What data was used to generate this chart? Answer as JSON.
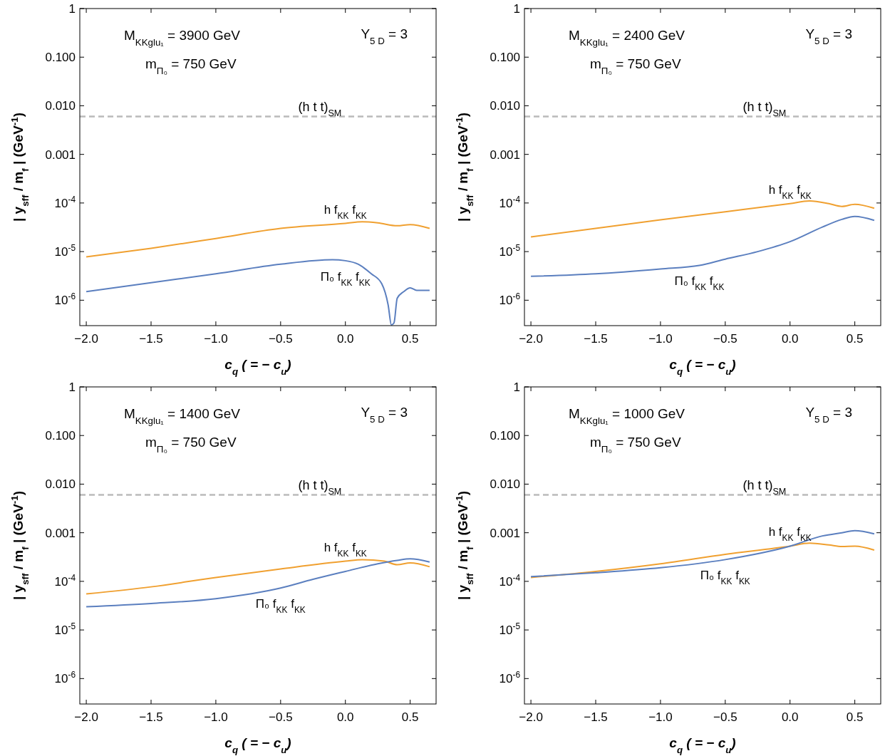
{
  "chart_data": [
    {
      "type": "line",
      "xlabel": "c$_{q}$ ( = − c$_{u}$)",
      "ylabel": "| y$_{sff}$ / m$_{f}$ | (GeV$^{-1}$)",
      "log": "y",
      "legend": false,
      "grid": false,
      "marker": "none",
      "line_style": "solid",
      "xlim": [
        -2.05,
        0.7
      ],
      "xticks": [
        {
          "value": -2,
          "label": "−2.0"
        },
        {
          "value": -1.5,
          "label": "−1.5"
        },
        {
          "value": -1,
          "label": "−1.0"
        },
        {
          "value": -0.5,
          "label": "−0.5"
        },
        {
          "value": 0,
          "label": "0.0"
        },
        {
          "value": 0.5,
          "label": "0.5"
        }
      ],
      "ylim": [
        3e-07,
        1
      ],
      "yticks": [
        {
          "value": 1,
          "label": "1"
        },
        {
          "value": 0.1,
          "label": "0.100"
        },
        {
          "value": 0.01,
          "label": "0.010"
        },
        {
          "value": 0.001,
          "label": "0.001"
        },
        {
          "value": 0.0001,
          "label": "10$^{-4}$"
        },
        {
          "value": 1e-05,
          "label": "10$^{-5}$"
        },
        {
          "value": 1e-06,
          "label": "10$^{-6}$"
        }
      ],
      "annotations": [
        "M$_{KKglu₁}$ = 3900 GeV",
        "m$_{Π₀}$ = 750 GeV",
        "Y$_{5 D}$ = 3"
      ],
      "ref_lines": [
        {
          "axis": "y",
          "value": 0.006,
          "label": "(h t t)$_{SM}$",
          "color": "#bbbbbb",
          "line_style": "dashed"
        }
      ],
      "series": [
        {
          "name": "h f$_{KK}$ f$_{KK}$",
          "color": "#f0a030",
          "x": [
            -2,
            -1.5,
            -1,
            -0.5,
            0,
            0.13,
            0.25,
            0.4,
            0.5,
            0.65
          ],
          "values": [
            7.8e-06,
            1.17e-05,
            1.86e-05,
            3e-05,
            3.8e-05,
            4.1e-05,
            3.9e-05,
            3.4e-05,
            3.6e-05,
            3e-05
          ]
        },
        {
          "name": "Π₀ f$_{KK}$ f$_{KK}$",
          "color": "#5b7fbf",
          "x": [
            -2,
            -1.5,
            -1,
            -0.5,
            -0.1,
            0,
            0.1,
            0.2,
            0.28,
            0.33,
            0.355,
            0.375,
            0.4,
            0.45,
            0.5,
            0.55,
            0.65
          ],
          "values": [
            1.5e-06,
            2.3e-06,
            3.5e-06,
            5.5e-06,
            6.8e-06,
            6.5e-06,
            5.5e-06,
            3.5e-06,
            2.2e-06,
            8e-07,
            3.1e-07,
            3.4e-07,
            1.1e-06,
            1.5e-06,
            1.8e-06,
            1.6e-06,
            1.6e-06
          ]
        }
      ]
    },
    {
      "type": "line",
      "xlabel": "c$_{q}$ ( = − c$_{u}$)",
      "ylabel": "| y$_{sff}$ / m$_{f}$ | (GeV$^{-1}$)",
      "log": "y",
      "legend": false,
      "grid": false,
      "marker": "none",
      "line_style": "solid",
      "xlim": [
        -2.05,
        0.7
      ],
      "xticks": [
        {
          "value": -2,
          "label": "−2.0"
        },
        {
          "value": -1.5,
          "label": "−1.5"
        },
        {
          "value": -1,
          "label": "−1.0"
        },
        {
          "value": -0.5,
          "label": "−0.5"
        },
        {
          "value": 0,
          "label": "0.0"
        },
        {
          "value": 0.5,
          "label": "0.5"
        }
      ],
      "ylim": [
        3e-07,
        1
      ],
      "yticks": [
        {
          "value": 1,
          "label": "1"
        },
        {
          "value": 0.1,
          "label": "0.100"
        },
        {
          "value": 0.01,
          "label": "0.010"
        },
        {
          "value": 0.001,
          "label": "0.001"
        },
        {
          "value": 0.0001,
          "label": "10$^{-4}$"
        },
        {
          "value": 1e-05,
          "label": "10$^{-5}$"
        },
        {
          "value": 1e-06,
          "label": "10$^{-6}$"
        }
      ],
      "annotations": [
        "M$_{KKglu₁}$ = 2400 GeV",
        "m$_{Π₀}$ = 750 GeV",
        "Y$_{5 D}$ = 3"
      ],
      "ref_lines": [
        {
          "axis": "y",
          "value": 0.006,
          "label": "(h t t)$_{SM}$",
          "color": "#bbbbbb",
          "line_style": "dashed"
        }
      ],
      "series": [
        {
          "name": "h f$_{KK}$ f$_{KK}$",
          "color": "#f0a030",
          "x": [
            -2,
            -1.5,
            -1,
            -0.5,
            0,
            0.15,
            0.3,
            0.4,
            0.5,
            0.65
          ],
          "values": [
            2e-05,
            3e-05,
            4.5e-05,
            6.6e-05,
            9.7e-05,
            0.00011,
            9.7e-05,
            8.5e-05,
            9.4e-05,
            7.8e-05
          ]
        },
        {
          "name": "Π₀ f$_{KK}$ f$_{KK}$",
          "color": "#5b7fbf",
          "x": [
            -2,
            -1.5,
            -1,
            -0.7,
            -0.5,
            -0.25,
            0,
            0.25,
            0.4,
            0.5,
            0.65
          ],
          "values": [
            3.1e-06,
            3.5e-06,
            4.4e-06,
            5.2e-06,
            7e-06,
            1e-05,
            1.6e-05,
            3.2e-05,
            4.6e-05,
            5.3e-05,
            4.4e-05
          ]
        }
      ]
    },
    {
      "type": "line",
      "xlabel": "c$_{q}$ ( = − c$_{u}$)",
      "ylabel": "| y$_{sff}$ / m$_{f}$ | (GeV$^{-1}$)",
      "log": "y",
      "legend": false,
      "grid": false,
      "marker": "none",
      "line_style": "solid",
      "xlim": [
        -2.05,
        0.7
      ],
      "xticks": [
        {
          "value": -2,
          "label": "−2.0"
        },
        {
          "value": -1.5,
          "label": "−1.5"
        },
        {
          "value": -1,
          "label": "−1.0"
        },
        {
          "value": -0.5,
          "label": "−0.5"
        },
        {
          "value": 0,
          "label": "0.0"
        },
        {
          "value": 0.5,
          "label": "0.5"
        }
      ],
      "ylim": [
        3e-07,
        1
      ],
      "yticks": [
        {
          "value": 1,
          "label": "1"
        },
        {
          "value": 0.1,
          "label": "0.100"
        },
        {
          "value": 0.01,
          "label": "0.010"
        },
        {
          "value": 0.001,
          "label": "0.001"
        },
        {
          "value": 0.0001,
          "label": "10$^{-4}$"
        },
        {
          "value": 1e-05,
          "label": "10$^{-5}$"
        },
        {
          "value": 1e-06,
          "label": "10$^{-6}$"
        }
      ],
      "annotations": [
        "M$_{KKglu₁}$ = 1400 GeV",
        "m$_{Π₀}$ = 750 GeV",
        "Y$_{5 D}$ = 3"
      ],
      "ref_lines": [
        {
          "axis": "y",
          "value": 0.006,
          "label": "(h t t)$_{SM}$",
          "color": "#bbbbbb",
          "line_style": "dashed"
        }
      ],
      "series": [
        {
          "name": "h f$_{KK}$ f$_{KK}$",
          "color": "#f0a030",
          "x": [
            -2,
            -1.5,
            -1,
            -0.5,
            0,
            0.13,
            0.3,
            0.4,
            0.5,
            0.65
          ],
          "values": [
            5.5e-05,
            7.7e-05,
            0.00012,
            0.00018,
            0.00026,
            0.00028,
            0.00026,
            0.00022,
            0.00024,
            0.0002
          ]
        },
        {
          "name": "Π₀ f$_{KK}$ f$_{KK}$",
          "color": "#5b7fbf",
          "x": [
            -2,
            -1.5,
            -1,
            -0.5,
            -0.25,
            0,
            0.25,
            0.4,
            0.5,
            0.65
          ],
          "values": [
            3e-05,
            3.5e-05,
            4.4e-05,
            7.3e-05,
            0.00011,
            0.00016,
            0.00023,
            0.00027,
            0.00029,
            0.00025
          ]
        }
      ]
    },
    {
      "type": "line",
      "xlabel": "c$_{q}$ ( = − c$_{u}$)",
      "ylabel": "| y$_{sff}$ / m$_{f}$ | (GeV$^{-1}$)",
      "log": "y",
      "legend": false,
      "grid": false,
      "marker": "none",
      "line_style": "solid",
      "xlim": [
        -2.05,
        0.7
      ],
      "xticks": [
        {
          "value": -2,
          "label": "−2.0"
        },
        {
          "value": -1.5,
          "label": "−1.5"
        },
        {
          "value": -1,
          "label": "−1.0"
        },
        {
          "value": -0.5,
          "label": "−0.5"
        },
        {
          "value": 0,
          "label": "0.0"
        },
        {
          "value": 0.5,
          "label": "0.5"
        }
      ],
      "ylim": [
        3e-07,
        1
      ],
      "yticks": [
        {
          "value": 1,
          "label": "1"
        },
        {
          "value": 0.1,
          "label": "0.100"
        },
        {
          "value": 0.01,
          "label": "0.010"
        },
        {
          "value": 0.001,
          "label": "0.001"
        },
        {
          "value": 0.0001,
          "label": "10$^{-4}$"
        },
        {
          "value": 1e-05,
          "label": "10$^{-5}$"
        },
        {
          "value": 1e-06,
          "label": "10$^{-6}$"
        }
      ],
      "annotations": [
        "M$_{KKglu₁}$ = 1000 GeV",
        "m$_{Π₀}$ = 750 GeV",
        "Y$_{5 D}$ = 3"
      ],
      "ref_lines": [
        {
          "axis": "y",
          "value": 0.006,
          "label": "(h t t)$_{SM}$",
          "color": "#bbbbbb",
          "line_style": "dashed"
        }
      ],
      "series": [
        {
          "name": "h f$_{KK}$ f$_{KK}$",
          "color": "#f0a030",
          "x": [
            -2,
            -1.5,
            -1,
            -0.5,
            0,
            0.15,
            0.3,
            0.4,
            0.5,
            0.65
          ],
          "values": [
            0.00012,
            0.00016,
            0.00023,
            0.00036,
            0.00053,
            0.00061,
            0.00056,
            0.00052,
            0.00053,
            0.00044
          ]
        },
        {
          "name": "Π₀ f$_{KK}$ f$_{KK}$",
          "color": "#5b7fbf",
          "x": [
            -2,
            -1.5,
            -1,
            -0.5,
            0,
            0.25,
            0.4,
            0.5,
            0.65
          ],
          "values": [
            0.000125,
            0.00015,
            0.00019,
            0.00028,
            0.00053,
            0.00086,
            0.001,
            0.0011,
            0.00095
          ]
        }
      ]
    }
  ]
}
